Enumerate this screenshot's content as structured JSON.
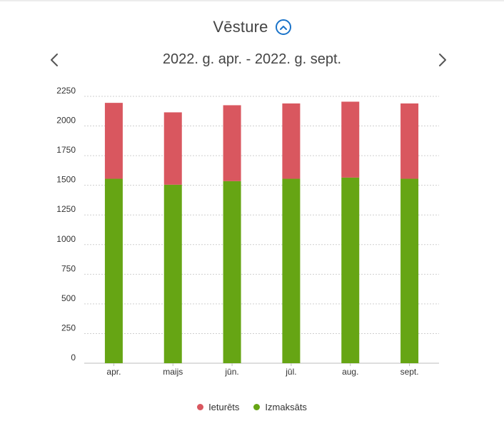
{
  "header": {
    "title": "Vēsture"
  },
  "period": {
    "label": "2022. g. apr. - 2022. g. sept."
  },
  "icons": {
    "collapse": "chevron-up-circle-icon",
    "prev": "chevron-left-icon",
    "next": "chevron-right-icon"
  },
  "colors": {
    "ieturets": "#d9575f",
    "izmaksats": "#66a514",
    "accent": "#1a73c9"
  },
  "chart_data": {
    "type": "bar",
    "stacked": true,
    "categories": [
      "apr.",
      "maijs",
      "jūn.",
      "jūl.",
      "aug.",
      "sept."
    ],
    "series": [
      {
        "name": "Izmaksāts",
        "color": "#66a514",
        "values": [
          1555,
          1505,
          1535,
          1555,
          1565,
          1555
        ]
      },
      {
        "name": "Ieturēts",
        "color": "#d9575f",
        "values": [
          640,
          610,
          640,
          635,
          640,
          635
        ]
      }
    ],
    "ylim": [
      0,
      2250
    ],
    "yticks": [
      0,
      250,
      500,
      750,
      1000,
      1250,
      1500,
      1750,
      2000,
      2250
    ],
    "grid": true,
    "legend_position": "bottom"
  }
}
